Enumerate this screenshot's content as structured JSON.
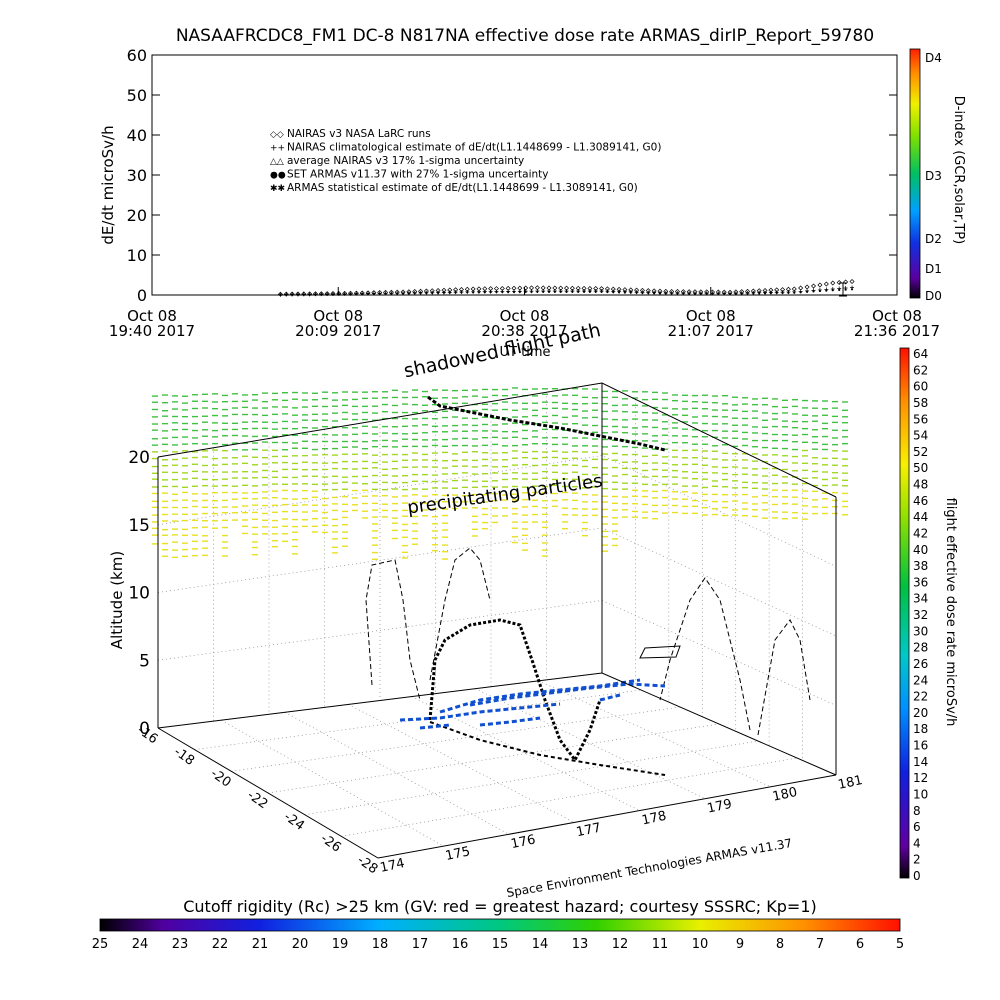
{
  "header": {
    "title": "NASAAFRCDC8_FM1 DC-8    N817NA effective dose rate ARMAS_dirIP_Report_59780"
  },
  "top_chart": {
    "ylabel": "dE/dt microSv/h",
    "xlabel": "UT time",
    "y_ticks": [
      "0",
      "10",
      "20",
      "30",
      "40",
      "50",
      "60"
    ],
    "x_ticks": [
      {
        "line1": "Oct 08",
        "line2": "19:40 2017"
      },
      {
        "line1": "Oct 08",
        "line2": "20:09 2017"
      },
      {
        "line1": "Oct 08",
        "line2": "20:38 2017"
      },
      {
        "line1": "Oct 08",
        "line2": "21:07 2017"
      },
      {
        "line1": "Oct 08",
        "line2": "21:36 2017"
      }
    ],
    "legend": [
      {
        "symbol": "◇◇",
        "label": "NAIRAS v3 NASA LaRC runs"
      },
      {
        "symbol": "++",
        "label": "NAIRAS climatological estimate of dE/dt(L1.1448699 - L1.3089141, G0)"
      },
      {
        "symbol": "△△",
        "label": "average NAIRAS v3 17% 1-sigma uncertainty"
      },
      {
        "symbol": "●●",
        "label": "SET ARMAS v11.37 with 27% 1-sigma uncertainty"
      },
      {
        "symbol": "✱✱",
        "label": "ARMAS statistical estimate of dE/dt(L1.1448699 - L1.3089141, G0)"
      }
    ],
    "d_index_label": "D-index (GCR,solar,TP)",
    "d_index_ticks": [
      "D4",
      "D3",
      "D2",
      "D1",
      "D0"
    ]
  },
  "chart_data": [
    {
      "type": "scatter",
      "title": "NASAAFRCDC8_FM1 DC-8    N817NA effective dose rate ARMAS_dirIP_Report_59780",
      "xlabel": "UT time",
      "ylabel": "dE/dt microSv/h",
      "ylim": [
        0,
        60
      ],
      "xlim": [
        "19:40",
        "21:36"
      ],
      "series": [
        {
          "name": "NAIRAS v3 NASA LaRC runs",
          "x": [
            "20:00",
            "20:10",
            "20:20",
            "20:30",
            "20:40",
            "20:50",
            "21:00",
            "21:10",
            "21:20",
            "21:26",
            "21:30"
          ],
          "values": [
            0.2,
            0.4,
            0.8,
            1.5,
            1.8,
            1.6,
            0.9,
            0.7,
            1.5,
            3.0,
            3.5
          ]
        },
        {
          "name": "NAIRAS climatological estimate of dE/dt(L1.1448699 - L1.3089141, G0)",
          "x": [
            "20:00",
            "20:10",
            "20:20",
            "20:30",
            "20:40",
            "20:50",
            "21:00",
            "21:10",
            "21:20",
            "21:26",
            "21:30"
          ],
          "values": [
            0.1,
            0.3,
            0.5,
            0.8,
            1.0,
            1.0,
            0.5,
            0.4,
            0.8,
            1.5,
            2.0
          ]
        },
        {
          "name": "SET ARMAS v11.37 with 27% 1-sigma uncertainty",
          "x": [
            "20:00",
            "20:10",
            "20:20",
            "20:30",
            "20:40",
            "20:50",
            "21:00",
            "21:10",
            "21:20",
            "21:26",
            "21:30"
          ],
          "values": [
            0.1,
            0.2,
            0.4,
            0.7,
            0.8,
            0.8,
            0.4,
            0.3,
            0.6,
            1.2,
            1.5
          ]
        }
      ],
      "grid": false,
      "legend_position": "top-center"
    },
    {
      "type": "scatter",
      "xlabel": "",
      "ylabel": "Altitude (km)",
      "z_ticks": [
        "0",
        "5",
        "10",
        "15",
        "20"
      ],
      "lon_ticks": [
        "174",
        "175",
        "176",
        "177",
        "178",
        "179",
        "180",
        "181"
      ],
      "lat_ticks": [
        "-16",
        "-18",
        "-20",
        "-22",
        "-24",
        "-26",
        "-28"
      ],
      "annotations": [
        "shadowed flight path",
        "precipitating particles"
      ],
      "credit": "Space Environment Technologies ARMAS v11.37",
      "colorbar_label": "flight effective dose rate microSv/h",
      "colorbar_ticks": [
        "64",
        "62",
        "60",
        "58",
        "56",
        "54",
        "52",
        "50",
        "48",
        "46",
        "44",
        "42",
        "40",
        "38",
        "36",
        "34",
        "32",
        "30",
        "28",
        "26",
        "24",
        "22",
        "20",
        "18",
        "16",
        "14",
        "12",
        "10",
        "8",
        "6",
        "4",
        "2",
        "0"
      ],
      "grid": true
    }
  ],
  "bottom_bar": {
    "label": "Cutoff rigidity (Rc) >25 km (GV: red = greatest hazard; courtesy SSSRC; Kp=1)",
    "ticks": [
      "25",
      "24",
      "23",
      "22",
      "21",
      "20",
      "19",
      "18",
      "17",
      "16",
      "15",
      "14",
      "13",
      "12",
      "11",
      "10",
      "9",
      "8",
      "7",
      "6",
      "5"
    ]
  }
}
